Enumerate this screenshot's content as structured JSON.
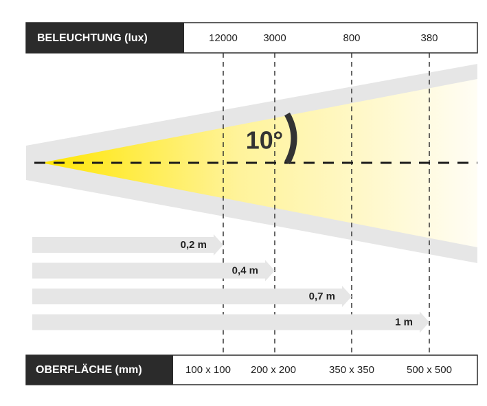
{
  "header": {
    "label": "BELEUCHTUNG (lux)",
    "values": [
      "12000",
      "3000",
      "800",
      "380"
    ]
  },
  "angle": "10°",
  "distances": [
    "0,2 m",
    "0,4 m",
    "0,7 m",
    "1 m"
  ],
  "footer": {
    "label": "OBERFLÄCHE (mm)",
    "values": [
      "100 x 100",
      "200 x 200",
      "350 x 350",
      "500 x 500"
    ]
  }
}
